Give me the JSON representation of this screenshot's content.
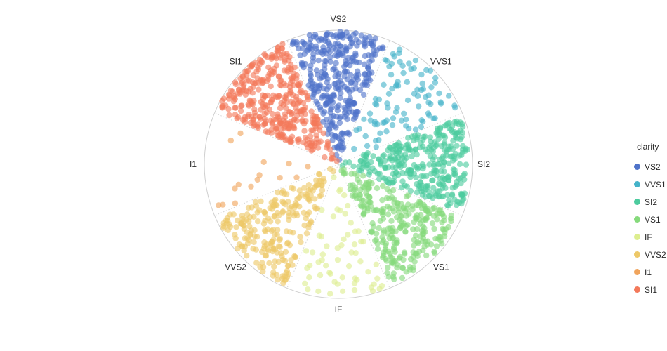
{
  "chart_data": {
    "type": "scatter",
    "subtype": "polar-scatter",
    "title": "",
    "angular_axis": {
      "categories": [
        "VS2",
        "VVS1",
        "SI2",
        "VS1",
        "IF",
        "VVS2",
        "I1",
        "SI1"
      ],
      "direction": "clockwise",
      "rotation_start": "top",
      "gridlines": "dotted"
    },
    "radial_axis": {
      "range": [
        0,
        1
      ],
      "ticks_visible": false
    },
    "legend": {
      "title": "clarity",
      "placement": "right"
    },
    "series": [
      {
        "name": "VS2",
        "color": "#4F73C9",
        "points_estimated": 340,
        "r_spread": [
          0.0,
          0.99
        ]
      },
      {
        "name": "VVS1",
        "color": "#45B3C9",
        "points_estimated": 90,
        "r_spread": [
          0.1,
          0.98
        ]
      },
      {
        "name": "SI2",
        "color": "#4CCB9E",
        "points_estimated": 330,
        "r_spread": [
          0.0,
          0.97
        ]
      },
      {
        "name": "VS1",
        "color": "#86DA7C",
        "points_estimated": 280,
        "r_spread": [
          0.0,
          0.98
        ]
      },
      {
        "name": "IF",
        "color": "#DDEE8F",
        "points_estimated": 60,
        "r_spread": [
          0.05,
          0.98
        ]
      },
      {
        "name": "VVS2",
        "color": "#EDC868",
        "points_estimated": 230,
        "r_spread": [
          0.0,
          0.98
        ]
      },
      {
        "name": "I1",
        "color": "#F0A45C",
        "points_estimated": 15,
        "r_spread": [
          0.1,
          0.95
        ]
      },
      {
        "name": "SI1",
        "color": "#F3795A",
        "points_estimated": 370,
        "r_spread": [
          0.0,
          0.99
        ]
      }
    ]
  }
}
